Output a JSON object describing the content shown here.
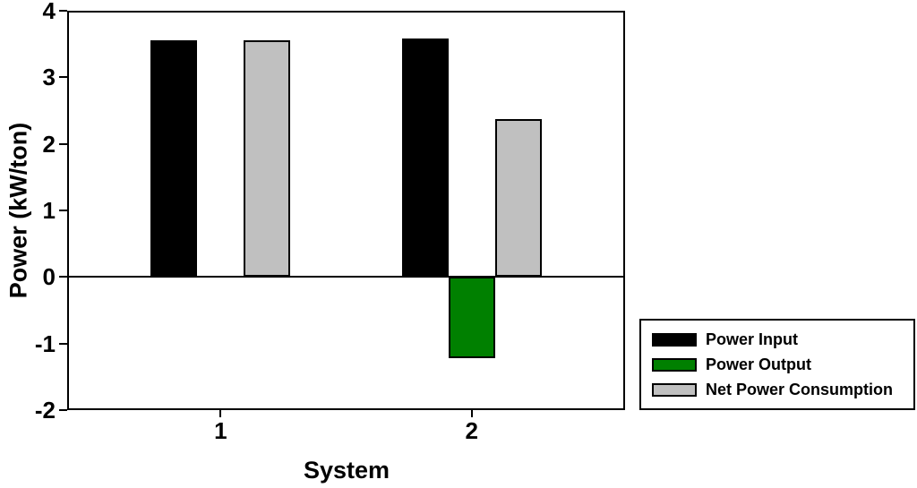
{
  "chart_data": {
    "type": "bar",
    "title": "",
    "xlabel": "System",
    "ylabel": "Power (kW/ton)",
    "categories": [
      "1",
      "2"
    ],
    "series": [
      {
        "name": "Power Input",
        "color": "#000000",
        "values": [
          3.55,
          3.58
        ]
      },
      {
        "name": "Power Output",
        "color": "#008000",
        "values": [
          0,
          -1.22
        ]
      },
      {
        "name": "Net Power Consumption",
        "color": "#c0c0c0",
        "values": [
          3.55,
          2.37
        ]
      }
    ],
    "ylim": [
      -2,
      4
    ],
    "yticks": [
      4,
      3,
      2,
      1,
      0,
      -1,
      -2
    ],
    "grid": false,
    "zero_line": true,
    "legend_position": "outside-right-bottom",
    "bar_border_color": "#000000",
    "background_color": "#ffffff"
  }
}
